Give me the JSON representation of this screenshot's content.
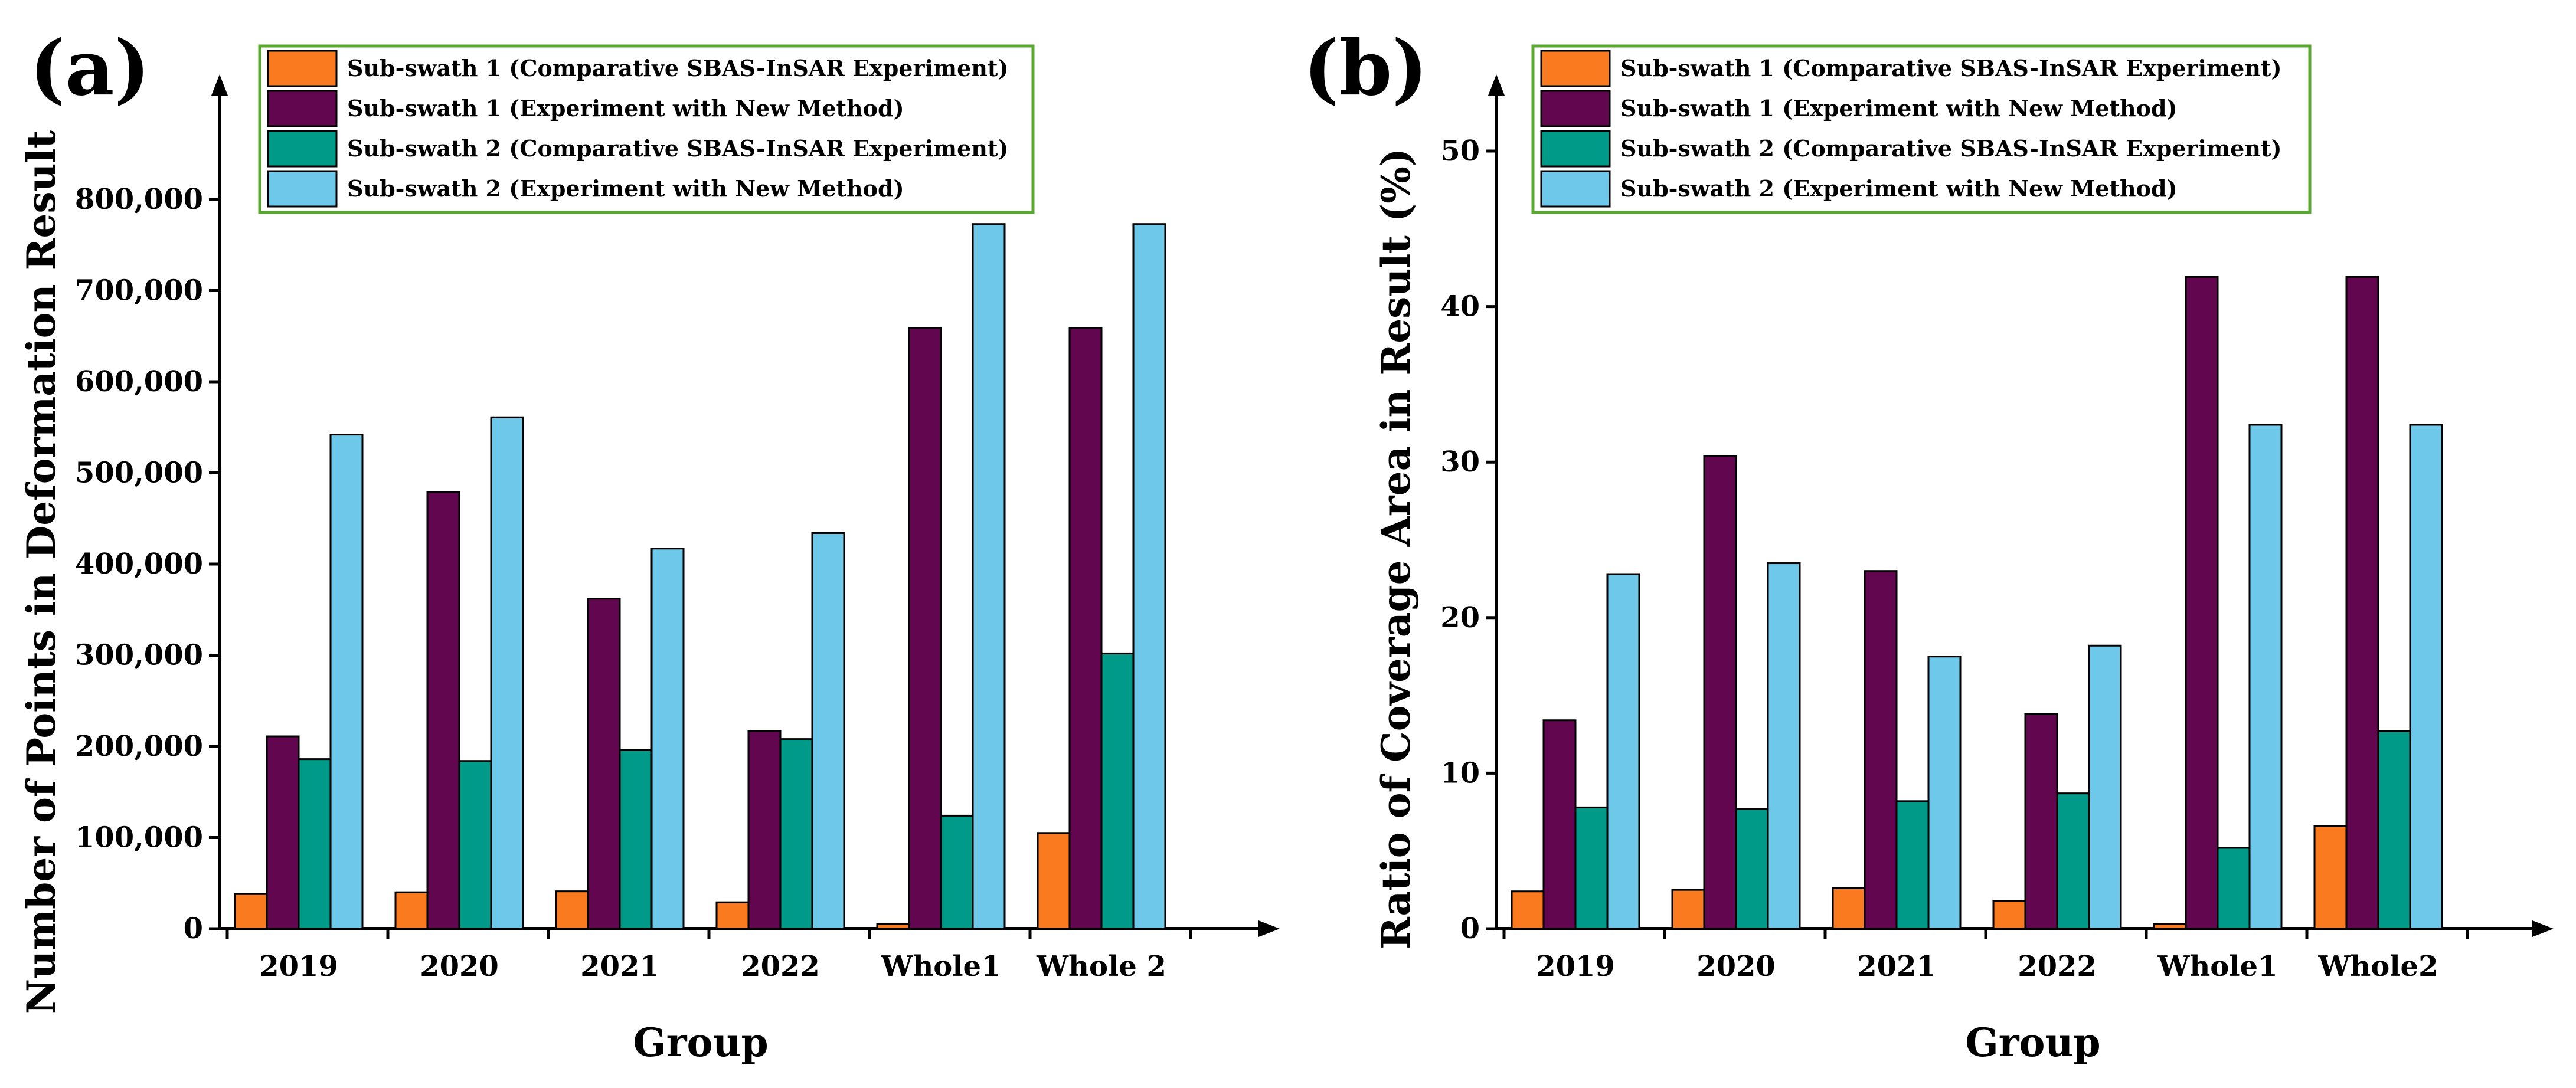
{
  "panels": [
    {
      "label": "(a)",
      "chart_data": {
        "type": "bar",
        "xlabel": "Group",
        "ylabel": "Number of Points in Deformation Result",
        "categories": [
          "2019",
          "2020",
          "2021",
          "2022",
          "Whole1",
          "Whole 2"
        ],
        "ylim": [
          0,
          900000
        ],
        "yticks": [
          0,
          100000,
          200000,
          300000,
          400000,
          500000,
          600000,
          700000,
          800000
        ],
        "ytick_labels": [
          "0",
          "100,000",
          "200,000",
          "300,000",
          "400,000",
          "500,000",
          "600,000",
          "700,000",
          "800,000"
        ],
        "legend_position": "top",
        "series": [
          {
            "name": "Sub-swath 1 (Comparative SBAS-InSAR Experiment)",
            "color": "#f97a1f",
            "values": [
              38000,
              40000,
              41000,
              29000,
              5000,
              105000
            ]
          },
          {
            "name": "Sub-swath 1 (Experiment with New Method)",
            "color": "#62074f",
            "values": [
              211000,
              479000,
              362000,
              217000,
              659000,
              659000
            ]
          },
          {
            "name": "Sub-swath 2 (Comparative SBAS-InSAR Experiment)",
            "color": "#009b88",
            "values": [
              186000,
              184000,
              196000,
              208000,
              124000,
              302000
            ]
          },
          {
            "name": "Sub-swath 2 (Experiment with New Method)",
            "color": "#6ec8ea",
            "values": [
              542000,
              561000,
              417000,
              434000,
              773000,
              773000
            ]
          }
        ]
      }
    },
    {
      "label": "(b)",
      "chart_data": {
        "type": "bar",
        "xlabel": "Group",
        "ylabel": "Ratio of Coverage Area in Result (%)",
        "categories": [
          "2019",
          "2020",
          "2021",
          "2022",
          "Whole1",
          "Whole2"
        ],
        "ylim": [
          0,
          55
        ],
        "yticks": [
          0,
          10,
          20,
          30,
          40,
          50
        ],
        "ytick_labels": [
          "0",
          "10",
          "20",
          "30",
          "40",
          "50"
        ],
        "legend_position": "top",
        "series": [
          {
            "name": "Sub-swath 1 (Comparative SBAS-InSAR Experiment)",
            "color": "#f97a1f",
            "values": [
              2.4,
              2.5,
              2.6,
              1.8,
              0.3,
              6.6
            ]
          },
          {
            "name": "Sub-swath 1 (Experiment with New Method)",
            "color": "#62074f",
            "values": [
              13.4,
              30.4,
              23.0,
              13.8,
              41.9,
              41.9
            ]
          },
          {
            "name": "Sub-swath 2 (Comparative SBAS-InSAR Experiment)",
            "color": "#009b88",
            "values": [
              7.8,
              7.7,
              8.2,
              8.7,
              5.2,
              12.7
            ]
          },
          {
            "name": "Sub-swath 2 (Experiment with New Method)",
            "color": "#6ec8ea",
            "values": [
              22.8,
              23.5,
              17.5,
              18.2,
              32.4,
              32.4
            ]
          }
        ]
      }
    }
  ],
  "legend_border_color": "#5aa832"
}
